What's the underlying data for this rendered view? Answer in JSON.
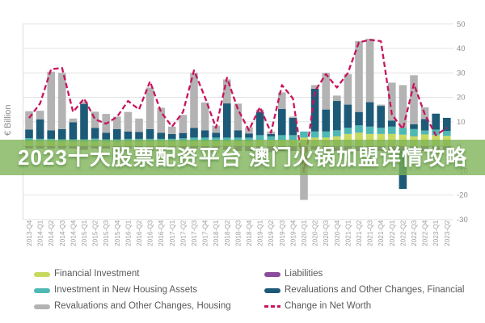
{
  "banner": {
    "text": "2023十大股票配资平台 澳门火锅加盟详情攻略",
    "bg_color": "rgba(124,178,85,0.78)",
    "text_color": "#ffffff"
  },
  "y_axis": {
    "label": "€ Billion",
    "ticks": [
      50,
      40,
      30,
      20,
      10,
      0,
      -10,
      -20,
      -30
    ]
  },
  "legend": {
    "items": [
      {
        "label": "Financial Investment",
        "color": "#c8d960",
        "type": "bar"
      },
      {
        "label": "Investment in New Housing Assets",
        "color": "#4eb8b4",
        "type": "bar"
      },
      {
        "label": "Revaluations and Other Changes, Housing",
        "color": "#b3b3b3",
        "type": "bar"
      },
      {
        "label": "Liabilities",
        "color": "#8a4d9c",
        "type": "bar"
      },
      {
        "label": "Revaluations and Other Changes, Financial",
        "color": "#1d5a78",
        "type": "bar"
      },
      {
        "label": "Change in Net Worth",
        "color": "#c9145e",
        "type": "dash"
      }
    ]
  },
  "chart_data": {
    "type": "bar",
    "subtype": "stacked-bars-with-line",
    "title": "",
    "xlabel": "",
    "ylabel": "€ Billion",
    "ylim": [
      -30,
      50
    ],
    "grid": true,
    "legend_position": "bottom",
    "categories": [
      "2013-Q4",
      "2014-Q1",
      "2014-Q2",
      "2014-Q3",
      "2014-Q4",
      "2015-Q1",
      "2015-Q2",
      "2015-Q3",
      "2015-Q4",
      "2016-Q1",
      "2016-Q2",
      "2016-Q3",
      "2016-Q4",
      "2017-Q1",
      "2017-Q2",
      "2017-Q3",
      "2017-Q4",
      "2018-Q1",
      "2018-Q2",
      "2018-Q3",
      "2018-Q4",
      "2019-Q1",
      "2019-Q2",
      "2019-Q3",
      "2019-Q4",
      "2020-Q1",
      "2020-Q2",
      "2020-Q3",
      "2020-Q4",
      "2021-Q1",
      "2021-Q2",
      "2021-Q3",
      "2021-Q4",
      "2022-Q1",
      "2022-Q2",
      "2022-Q3",
      "2022-Q4",
      "2023-Q1",
      "2023-Q2"
    ],
    "series": [
      {
        "name": "Financial Investment",
        "color": "#c8d960",
        "values": [
          2,
          2,
          2,
          1.8,
          1.8,
          1.8,
          1.8,
          1.8,
          1.8,
          2,
          2,
          2,
          2,
          2,
          2,
          2,
          2,
          2,
          2,
          2,
          2,
          2.5,
          2.5,
          2.5,
          2.5,
          3.5,
          3.5,
          3.5,
          4,
          5,
          5.5,
          5,
          5,
          5,
          4.7,
          4,
          4.8,
          4.5,
          4.2
        ]
      },
      {
        "name": "Investment in New Housing Assets",
        "color": "#4eb8b4",
        "values": [
          1.3,
          1,
          1,
          1,
          1,
          1,
          1.3,
          1,
          1,
          1,
          1,
          1,
          1,
          1,
          1.2,
          1.5,
          1.5,
          1.5,
          1.5,
          1.5,
          1.5,
          2,
          1.5,
          2,
          2,
          2.5,
          2.5,
          2.5,
          2.5,
          2.5,
          3,
          3,
          2.5,
          3,
          2.8,
          3,
          1.6,
          2.3,
          2
        ]
      },
      {
        "name": "Revaluations and Other Changes, Financial",
        "color": "#1d5a78",
        "values": [
          3.5,
          8,
          3.5,
          4.2,
          7,
          14.5,
          4.4,
          2.7,
          4.2,
          3,
          2.8,
          4,
          2.5,
          2,
          2.2,
          4,
          3,
          2,
          14,
          3,
          1.7,
          9.5,
          1,
          10.7,
          7.1,
          0,
          17.5,
          9,
          12,
          9.5,
          5.5,
          10,
          9,
          2.5,
          0,
          2,
          4.7,
          6.5,
          5.4
        ]
      },
      {
        "name": "Revaluations and Other Changes, Housing",
        "color": "#b3b3b3",
        "values": [
          7.5,
          3.5,
          24,
          23,
          1.5,
          1,
          6.6,
          7.7,
          5.1,
          8,
          5.5,
          17,
          10.2,
          3,
          7.4,
          22.5,
          11.4,
          2.9,
          9.8,
          10.9,
          2.5,
          1,
          1,
          6.8,
          0.5,
          0,
          1.5,
          15,
          2.2,
          12.5,
          29,
          26,
          0.5,
          15.5,
          17.5,
          20,
          4.8,
          0,
          0
        ]
      },
      {
        "name": "Liabilities",
        "color": "#8a4d9c",
        "values": [
          -1,
          -1,
          -1,
          -1,
          -1,
          -1.5,
          -1,
          -1,
          -2,
          -1,
          -1,
          -2,
          -1.5,
          -1,
          -1,
          -1,
          -1.5,
          -1,
          -1.5,
          -2,
          -2,
          -2,
          -2.5,
          -2,
          -2,
          -2,
          -1.5,
          -2,
          -2,
          -2,
          -2,
          -2,
          -2,
          -2,
          -1.5,
          -2,
          -2,
          -1.5,
          -1.5
        ]
      }
    ],
    "extra_negative_segments": [
      {
        "category": "2020-Q1",
        "index": 25,
        "series": "Revaluations and Other Changes, Housing",
        "value": -20
      },
      {
        "category": "2022-Q2",
        "index": 34,
        "series": "Revaluations and Other Changes, Financial",
        "value": -16
      }
    ],
    "line_series": {
      "name": "Change in Net Worth",
      "color": "#c9145e",
      "style": "dashed",
      "values": [
        11.5,
        17.5,
        31.5,
        32,
        14,
        19.5,
        11,
        9.2,
        12,
        18.5,
        15,
        26.5,
        14,
        8,
        14,
        31,
        20,
        7.5,
        28,
        15,
        6.5,
        16,
        5.5,
        25,
        19.5,
        -10.5,
        22.5,
        29.5,
        24,
        30,
        42.5,
        43.5,
        43,
        13,
        7,
        25.5,
        13,
        4.5,
        7.5
      ]
    }
  }
}
